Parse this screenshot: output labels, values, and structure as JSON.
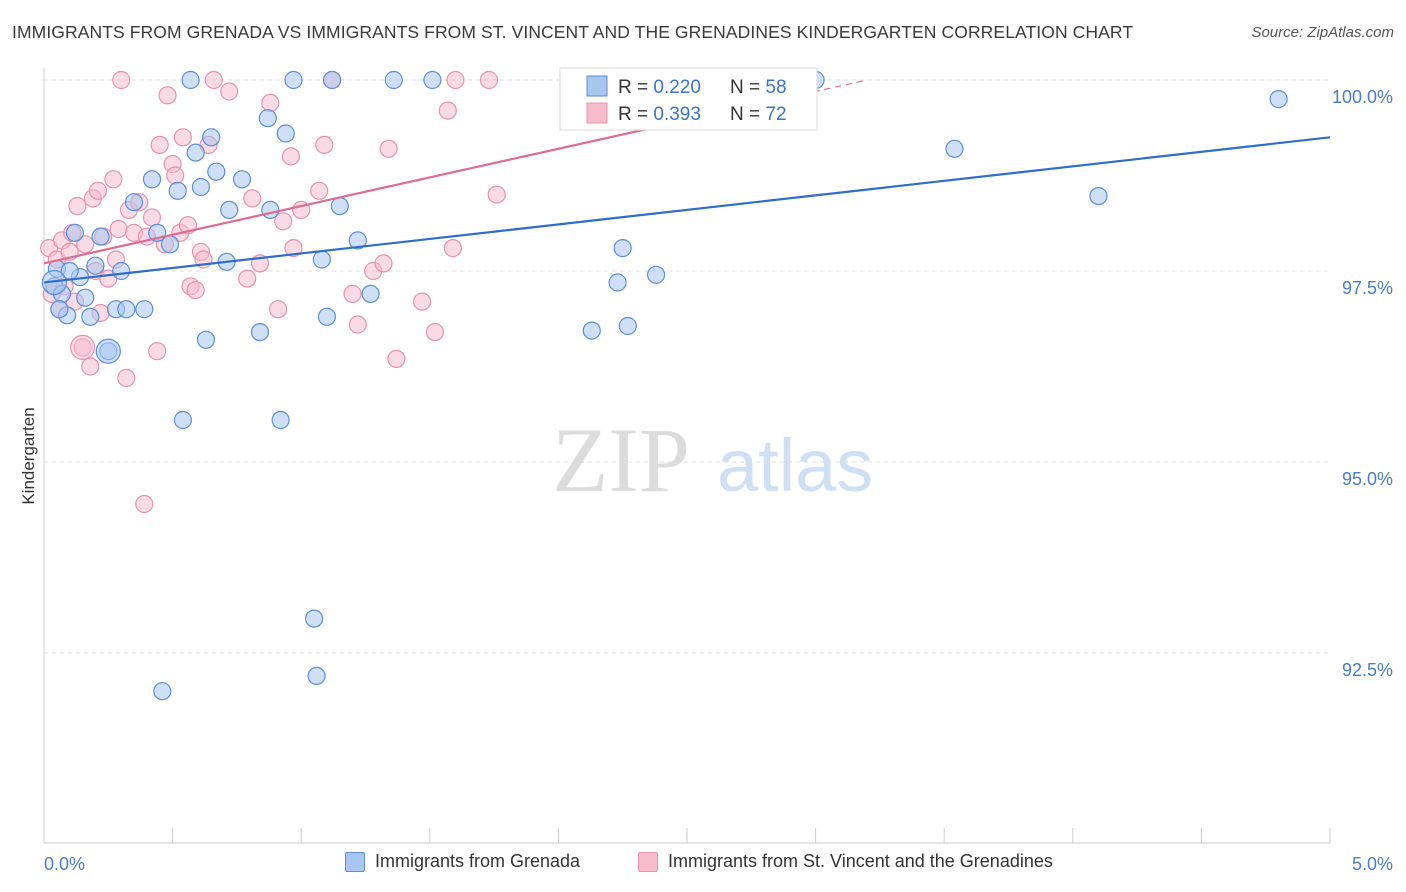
{
  "title": "IMMIGRANTS FROM GRENADA VS IMMIGRANTS FROM ST. VINCENT AND THE GRENADINES KINDERGARTEN CORRELATION CHART",
  "source": "Source: ZipAtlas.com",
  "watermark": {
    "zip": "ZIP",
    "atlas": "atlas"
  },
  "colors": {
    "blue_fill": "#a8c6ef",
    "blue_stroke": "#5b8fd6",
    "blue_line": "#2f6fcc",
    "pink_fill": "#f6bccd",
    "pink_stroke": "#e693ad",
    "pink_line": "#e06b93",
    "axis_text": "#4a7cc9",
    "grid": "#dddddd"
  },
  "legend_top": {
    "rows": [
      {
        "r_label": "R = ",
        "r_value": "0.220",
        "n_label": "N = ",
        "n_value": "58"
      },
      {
        "r_label": "R = ",
        "r_value": "0.393",
        "n_label": "N = ",
        "n_value": "72"
      }
    ]
  },
  "legend_bottom": {
    "items": [
      "Immigrants from Grenada",
      "Immigrants from St. Vincent and the Grenadines"
    ]
  },
  "chart_data": {
    "type": "scatter",
    "title": "IMMIGRANTS FROM GRENADA VS IMMIGRANTS FROM ST. VINCENT AND THE GRENADINES KINDERGARTEN CORRELATION CHART",
    "xlabel": "",
    "ylabel": "Kindergarten",
    "xlim": [
      0,
      5
    ],
    "ylim": [
      90.2,
      100.2
    ],
    "x_tick_labels": [
      "0.0%",
      "5.0%"
    ],
    "y_ticks": [
      92.5,
      95.0,
      97.5,
      100.0
    ],
    "y_tick_labels": [
      "92.5%",
      "95.0%",
      "97.5%",
      "100.0%"
    ],
    "grid": true,
    "series": [
      {
        "name": "Immigrants from Grenada",
        "r": 0.22,
        "n": 58,
        "trend": {
          "x": [
            0,
            5
          ],
          "y": [
            97.35,
            99.25
          ]
        },
        "points": [
          [
            0.05,
            97.53
          ],
          [
            0.04,
            97.3
          ],
          [
            0.09,
            96.92
          ],
          [
            0.12,
            98.0
          ],
          [
            0.14,
            97.42
          ],
          [
            0.16,
            97.15
          ],
          [
            0.18,
            96.9
          ],
          [
            0.2,
            97.57
          ],
          [
            0.22,
            97.95
          ],
          [
            0.25,
            96.45
          ],
          [
            0.28,
            97.0
          ],
          [
            0.3,
            97.5
          ],
          [
            0.32,
            97.0
          ],
          [
            0.35,
            98.4
          ],
          [
            0.39,
            97.0
          ],
          [
            0.42,
            98.7
          ],
          [
            0.44,
            98.0
          ],
          [
            0.46,
            92.0
          ],
          [
            0.49,
            97.85
          ],
          [
            0.52,
            98.55
          ],
          [
            0.54,
            95.55
          ],
          [
            0.57,
            100.0
          ],
          [
            0.59,
            99.05
          ],
          [
            0.61,
            98.6
          ],
          [
            0.63,
            96.6
          ],
          [
            0.65,
            99.25
          ],
          [
            0.67,
            98.8
          ],
          [
            0.71,
            97.62
          ],
          [
            0.72,
            98.3
          ],
          [
            0.77,
            98.7
          ],
          [
            0.84,
            96.7
          ],
          [
            0.87,
            99.5
          ],
          [
            0.88,
            98.3
          ],
          [
            0.92,
            95.55
          ],
          [
            0.94,
            99.3
          ],
          [
            0.97,
            100.0
          ],
          [
            1.05,
            92.95
          ],
          [
            1.06,
            92.2
          ],
          [
            1.08,
            97.65
          ],
          [
            1.1,
            96.9
          ],
          [
            1.12,
            100.0
          ],
          [
            1.15,
            98.35
          ],
          [
            1.22,
            97.9
          ],
          [
            1.27,
            97.2
          ],
          [
            1.36,
            100.0
          ],
          [
            1.51,
            100.0
          ],
          [
            2.13,
            96.72
          ],
          [
            2.23,
            97.35
          ],
          [
            2.25,
            97.8
          ],
          [
            2.27,
            96.78
          ],
          [
            2.38,
            97.45
          ],
          [
            3.0,
            100.0
          ],
          [
            3.54,
            99.1
          ],
          [
            4.1,
            98.48
          ],
          [
            4.8,
            99.75
          ],
          [
            0.07,
            97.2
          ],
          [
            0.1,
            97.5
          ],
          [
            0.06,
            97.0
          ]
        ],
        "large_points": [
          [
            0.04,
            97.35
          ],
          [
            0.25,
            96.45
          ]
        ]
      },
      {
        "name": "Immigrants from St. Vincent and the Grenadines",
        "r": 0.393,
        "n": 72,
        "trend": {
          "x": [
            0,
            3.2
          ],
          "y": [
            97.6,
            100.0
          ]
        },
        "points": [
          [
            0.02,
            97.8
          ],
          [
            0.03,
            97.2
          ],
          [
            0.05,
            97.65
          ],
          [
            0.06,
            97.0
          ],
          [
            0.07,
            97.9
          ],
          [
            0.08,
            97.3
          ],
          [
            0.1,
            97.75
          ],
          [
            0.11,
            98.0
          ],
          [
            0.12,
            97.1
          ],
          [
            0.13,
            98.35
          ],
          [
            0.15,
            96.5
          ],
          [
            0.16,
            97.85
          ],
          [
            0.18,
            96.25
          ],
          [
            0.19,
            98.45
          ],
          [
            0.2,
            97.5
          ],
          [
            0.21,
            98.55
          ],
          [
            0.22,
            96.95
          ],
          [
            0.23,
            97.95
          ],
          [
            0.25,
            97.4
          ],
          [
            0.27,
            98.7
          ],
          [
            0.28,
            97.65
          ],
          [
            0.29,
            98.05
          ],
          [
            0.3,
            100.0
          ],
          [
            0.32,
            96.1
          ],
          [
            0.33,
            98.3
          ],
          [
            0.35,
            98.0
          ],
          [
            0.37,
            98.4
          ],
          [
            0.39,
            94.45
          ],
          [
            0.4,
            97.95
          ],
          [
            0.42,
            98.2
          ],
          [
            0.44,
            96.45
          ],
          [
            0.45,
            99.15
          ],
          [
            0.47,
            97.85
          ],
          [
            0.48,
            99.8
          ],
          [
            0.5,
            98.9
          ],
          [
            0.51,
            98.75
          ],
          [
            0.53,
            98.0
          ],
          [
            0.54,
            99.25
          ],
          [
            0.56,
            98.1
          ],
          [
            0.57,
            97.3
          ],
          [
            0.59,
            97.25
          ],
          [
            0.61,
            97.75
          ],
          [
            0.62,
            97.65
          ],
          [
            0.64,
            99.15
          ],
          [
            0.66,
            100.0
          ],
          [
            0.72,
            99.85
          ],
          [
            0.79,
            97.4
          ],
          [
            0.81,
            98.45
          ],
          [
            0.84,
            97.6
          ],
          [
            0.88,
            99.7
          ],
          [
            0.91,
            97.0
          ],
          [
            0.93,
            98.15
          ],
          [
            0.96,
            99.0
          ],
          [
            0.97,
            97.8
          ],
          [
            1.0,
            98.3
          ],
          [
            1.07,
            98.55
          ],
          [
            1.09,
            99.15
          ],
          [
            1.12,
            100.0
          ],
          [
            1.2,
            97.2
          ],
          [
            1.22,
            96.8
          ],
          [
            1.28,
            97.5
          ],
          [
            1.32,
            97.6
          ],
          [
            1.34,
            99.1
          ],
          [
            1.37,
            96.35
          ],
          [
            1.47,
            97.1
          ],
          [
            1.52,
            96.7
          ],
          [
            1.57,
            99.6
          ],
          [
            1.59,
            97.8
          ],
          [
            1.6,
            100.0
          ],
          [
            1.73,
            100.0
          ],
          [
            1.76,
            98.5
          ],
          [
            2.45,
            100.0
          ]
        ],
        "large_points": [
          [
            0.15,
            96.5
          ]
        ]
      }
    ]
  }
}
